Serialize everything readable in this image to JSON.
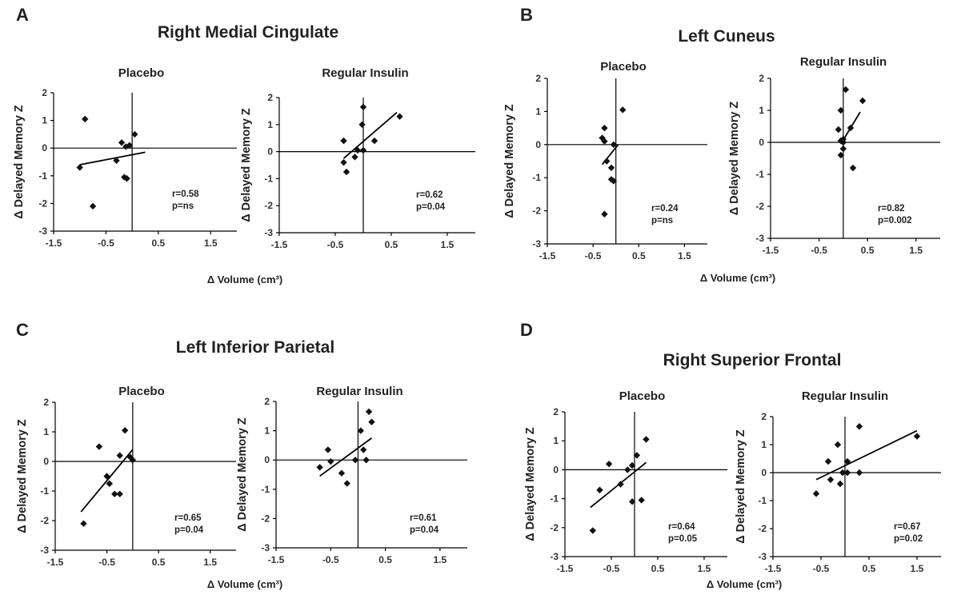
{
  "chart_data": [
    {
      "panel": "A",
      "region": "Right Medial Cingulate",
      "subtitle": "Placebo",
      "type": "scatter",
      "xlabel": "Δ Volume (cm³)",
      "ylabel": "Δ Delayed Memory Z",
      "xlim": [
        -1.5,
        2
      ],
      "ylim": [
        -3,
        2
      ],
      "xticks": [
        "-1.5",
        "-0.5",
        "0.5",
        "1.5"
      ],
      "yticks": [
        "2",
        "1",
        "0",
        "-1",
        "-2",
        "-3"
      ],
      "points": [
        [
          -0.9,
          1.05
        ],
        [
          -1.0,
          -0.7
        ],
        [
          -0.75,
          -2.1
        ],
        [
          -0.3,
          -0.45
        ],
        [
          -0.2,
          0.2
        ],
        [
          -0.12,
          0.05
        ],
        [
          -0.05,
          0.1
        ],
        [
          0.05,
          0.5
        ],
        [
          -0.15,
          -1.05
        ],
        [
          -0.1,
          -1.1
        ]
      ],
      "fit": [
        [
          -1.0,
          -0.6
        ],
        [
          0.25,
          -0.15
        ]
      ],
      "stats": [
        "r=0.58",
        "p=ns"
      ]
    },
    {
      "panel": "A",
      "region": "",
      "subtitle": "Regular Insulin",
      "type": "scatter",
      "xlabel": "",
      "ylabel": "Δ Delayed Memory Z",
      "xlim": [
        -1.5,
        2
      ],
      "ylim": [
        -3,
        2
      ],
      "xticks": [
        "-1.5",
        "-0.5",
        "0.5",
        "1.5"
      ],
      "yticks": [
        "2",
        "1",
        "0",
        "-1",
        "-2",
        "-3"
      ],
      "points": [
        [
          -0.35,
          0.4
        ],
        [
          -0.35,
          -0.4
        ],
        [
          -0.3,
          -0.75
        ],
        [
          -0.15,
          -0.2
        ],
        [
          -0.1,
          0.05
        ],
        [
          0.0,
          1.65
        ],
        [
          -0.02,
          1.0
        ],
        [
          0.0,
          0.05
        ],
        [
          0.2,
          0.4
        ],
        [
          0.65,
          1.3
        ]
      ],
      "fit": [
        [
          -0.35,
          -0.25
        ],
        [
          0.6,
          1.45
        ]
      ],
      "stats": [
        "r=0.62",
        "p=0.04"
      ]
    },
    {
      "panel": "B",
      "region": "Left Cuneus",
      "subtitle": "Placebo",
      "type": "scatter",
      "xlabel": "Δ Volume (cm³)",
      "ylabel": "Δ Delayed Memory Z",
      "xlim": [
        -1.5,
        2
      ],
      "ylim": [
        -3,
        2
      ],
      "xticks": [
        "-1.5",
        "-0.5",
        "0.5",
        "1.5"
      ],
      "yticks": [
        "2",
        "1",
        "0",
        "-1",
        "-2",
        "-3"
      ],
      "points": [
        [
          -0.3,
          0.2
        ],
        [
          -0.25,
          0.1
        ],
        [
          -0.25,
          0.5
        ],
        [
          -0.2,
          -0.5
        ],
        [
          -0.1,
          -0.7
        ],
        [
          -0.05,
          0.0
        ],
        [
          -0.1,
          -1.05
        ],
        [
          -0.05,
          -1.1
        ],
        [
          -0.25,
          -2.1
        ],
        [
          0.15,
          1.05
        ]
      ],
      "fit": [
        [
          -0.3,
          -0.6
        ],
        [
          0.05,
          0.0
        ]
      ],
      "stats": [
        "r=0.24",
        "p=ns"
      ]
    },
    {
      "panel": "B",
      "region": "",
      "subtitle": "Regular Insulin",
      "type": "scatter",
      "xlabel": "",
      "ylabel": "Δ Delayed Memory Z",
      "xlim": [
        -1.5,
        2
      ],
      "ylim": [
        -3,
        2
      ],
      "xticks": [
        "-1.5",
        "-0.5",
        "0.5",
        "1.5"
      ],
      "yticks": [
        "2",
        "1",
        "0",
        "-1",
        "-2",
        "-3"
      ],
      "points": [
        [
          -0.1,
          0.4
        ],
        [
          -0.05,
          1.0
        ],
        [
          -0.05,
          0.05
        ],
        [
          0.0,
          0.0
        ],
        [
          0.0,
          -0.2
        ],
        [
          -0.05,
          -0.4
        ],
        [
          0.05,
          1.65
        ],
        [
          0.15,
          0.45
        ],
        [
          0.2,
          -0.8
        ],
        [
          0.4,
          1.3
        ],
        [
          0.0,
          0.1
        ]
      ],
      "fit": [
        [
          -0.05,
          -0.05
        ],
        [
          0.35,
          0.95
        ]
      ],
      "stats": [
        "r=0.82",
        "p=0.002"
      ]
    },
    {
      "panel": "C",
      "region": "Left Inferior Parietal",
      "subtitle": "Placebo",
      "type": "scatter",
      "xlabel": "Δ Volume (cm³)",
      "ylabel": "Δ Delayed Memory Z",
      "xlim": [
        -1.5,
        2
      ],
      "ylim": [
        -3,
        2
      ],
      "xticks": [
        "-1.5",
        "-0.5",
        "0.5",
        "1.5"
      ],
      "yticks": [
        "2",
        "1",
        "0",
        "-1",
        "-2",
        "-3"
      ],
      "points": [
        [
          -0.65,
          0.5
        ],
        [
          -0.5,
          -0.5
        ],
        [
          -0.45,
          -0.75
        ],
        [
          -0.35,
          -1.1
        ],
        [
          -0.25,
          -1.1
        ],
        [
          -0.25,
          0.2
        ],
        [
          -0.15,
          1.05
        ],
        [
          -0.05,
          0.15
        ],
        [
          0.0,
          0.05
        ],
        [
          -0.95,
          -2.1
        ]
      ],
      "fit": [
        [
          -1.0,
          -1.7
        ],
        [
          0.0,
          0.4
        ]
      ],
      "stats": [
        "r=0.65",
        "p=0.04"
      ]
    },
    {
      "panel": "C",
      "region": "",
      "subtitle": "Regular Insulin",
      "type": "scatter",
      "xlabel": "",
      "ylabel": "Δ Delayed Memory Z",
      "xlim": [
        -1.5,
        2
      ],
      "ylim": [
        -3,
        2
      ],
      "xticks": [
        "-1.5",
        "-0.5",
        "0.5",
        "1.5"
      ],
      "yticks": [
        "2",
        "1",
        "0",
        "-1",
        "-2",
        "-3"
      ],
      "points": [
        [
          -0.7,
          -0.25
        ],
        [
          -0.55,
          0.35
        ],
        [
          -0.5,
          -0.05
        ],
        [
          -0.3,
          -0.45
        ],
        [
          -0.2,
          -0.8
        ],
        [
          -0.05,
          0.0
        ],
        [
          0.05,
          1.0
        ],
        [
          0.1,
          0.35
        ],
        [
          0.15,
          0.0
        ],
        [
          0.2,
          1.65
        ],
        [
          0.25,
          1.3
        ]
      ],
      "fit": [
        [
          -0.7,
          -0.55
        ],
        [
          0.25,
          0.75
        ]
      ],
      "stats": [
        "r=0.61",
        "p=0.04"
      ]
    },
    {
      "panel": "D",
      "region": "Right Superior Frontal",
      "subtitle": "Placebo",
      "type": "scatter",
      "xlabel": "Δ Volume (cm³)",
      "ylabel": "Δ Delayed Memory Z",
      "xlim": [
        -1.5,
        2
      ],
      "ylim": [
        -3,
        2
      ],
      "xticks": [
        "-1.5",
        "-0.5",
        "0.5",
        "1.5"
      ],
      "yticks": [
        "2",
        "1",
        "0",
        "-1",
        "-2",
        "-3"
      ],
      "points": [
        [
          -0.9,
          -2.1
        ],
        [
          -0.75,
          -0.7
        ],
        [
          -0.55,
          0.2
        ],
        [
          -0.3,
          -0.5
        ],
        [
          -0.15,
          0.0
        ],
        [
          -0.05,
          0.15
        ],
        [
          0.05,
          0.5
        ],
        [
          0.25,
          1.05
        ],
        [
          0.15,
          -1.05
        ],
        [
          -0.05,
          -1.1
        ]
      ],
      "fit": [
        [
          -0.95,
          -1.3
        ],
        [
          0.25,
          0.25
        ]
      ],
      "stats": [
        "r=0.64",
        "p=0.05"
      ]
    },
    {
      "panel": "D",
      "region": "",
      "subtitle": "Regular Insulin",
      "type": "scatter",
      "xlabel": "",
      "ylabel": "Δ Delayed Memory Z",
      "xlim": [
        -1.5,
        2
      ],
      "ylim": [
        -3,
        2
      ],
      "xticks": [
        "-1.5",
        "-0.5",
        "0.5",
        "1.5"
      ],
      "yticks": [
        "2",
        "1",
        "0",
        "-1",
        "-2",
        "-3"
      ],
      "points": [
        [
          -0.6,
          -0.75
        ],
        [
          -0.35,
          0.4
        ],
        [
          -0.3,
          -0.25
        ],
        [
          -0.15,
          1.0
        ],
        [
          -0.1,
          -0.4
        ],
        [
          -0.05,
          0.0
        ],
        [
          0.05,
          0.0
        ],
        [
          0.05,
          0.4
        ],
        [
          0.3,
          1.65
        ],
        [
          0.3,
          0.0
        ],
        [
          1.5,
          1.3
        ]
      ],
      "fit": [
        [
          -0.6,
          -0.25
        ],
        [
          1.5,
          1.5
        ]
      ],
      "stats": [
        "r=0.67",
        "p=0.02"
      ]
    }
  ],
  "labels": {
    "panels": [
      "A",
      "B",
      "C",
      "D"
    ],
    "x_axis_label": "Δ Volume (cm³)"
  }
}
